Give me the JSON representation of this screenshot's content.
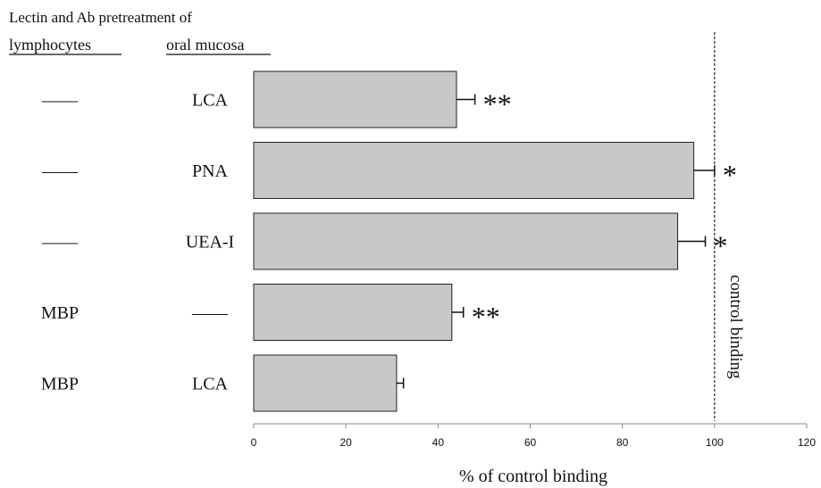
{
  "chart_data": {
    "type": "bar",
    "orientation": "horizontal",
    "header_title": "Lectin and Ab pretreatment of",
    "column_headers": {
      "lymphocytes": "lymphocytes",
      "oral_mucosa": "oral mucosa"
    },
    "rows": [
      {
        "lymphocytes": "——",
        "oral_mucosa": "LCA",
        "value": 44,
        "error": 4,
        "significance": "**"
      },
      {
        "lymphocytes": "——",
        "oral_mucosa": "PNA",
        "value": 95.5,
        "error": 4.5,
        "significance": "*"
      },
      {
        "lymphocytes": "——",
        "oral_mucosa": "UEA-I",
        "value": 92,
        "error": 6,
        "significance": "*"
      },
      {
        "lymphocytes": "MBP",
        "oral_mucosa": "——",
        "value": 43,
        "error": 2.5,
        "significance": "**"
      },
      {
        "lymphocytes": "MBP",
        "oral_mucosa": "LCA",
        "value": 31,
        "error": 1.5,
        "significance": ""
      }
    ],
    "xlabel": "% of control binding",
    "xlim": [
      0,
      120
    ],
    "xticks": [
      0,
      20,
      40,
      60,
      80,
      100,
      120
    ],
    "reference_line": {
      "value": 100,
      "label": "control binding",
      "style": "dashed"
    },
    "grid": false,
    "bar_color": "#c8c8c8",
    "bar_edge_color": "#222222"
  }
}
